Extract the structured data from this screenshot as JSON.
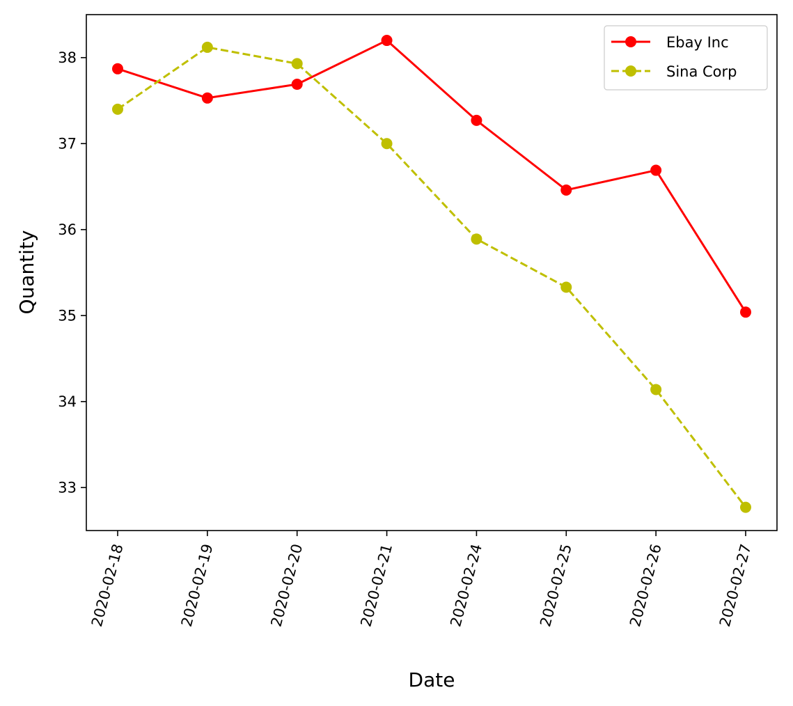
{
  "chart_data": {
    "type": "line",
    "title": "",
    "xlabel": "Date",
    "ylabel": "Quantity",
    "categories": [
      "2020-02-18",
      "2020-02-19",
      "2020-02-20",
      "2020-02-21",
      "2020-02-24",
      "2020-02-25",
      "2020-02-26",
      "2020-02-27"
    ],
    "yticks": [
      33,
      34,
      35,
      36,
      37,
      38
    ],
    "ylim": [
      32.5,
      38.5
    ],
    "grid": false,
    "legend_position": "upper right",
    "series": [
      {
        "name": "Ebay Inc",
        "color": "#ff0000",
        "line_style": "solid",
        "marker": "circle",
        "values": [
          37.87,
          37.53,
          37.69,
          38.2,
          37.27,
          36.46,
          36.69,
          35.04
        ]
      },
      {
        "name": "Sina Corp",
        "color": "#bfbf00",
        "line_style": "dashed",
        "marker": "circle",
        "values": [
          37.4,
          38.12,
          37.93,
          37.0,
          35.89,
          35.33,
          34.14,
          32.77
        ]
      }
    ]
  }
}
